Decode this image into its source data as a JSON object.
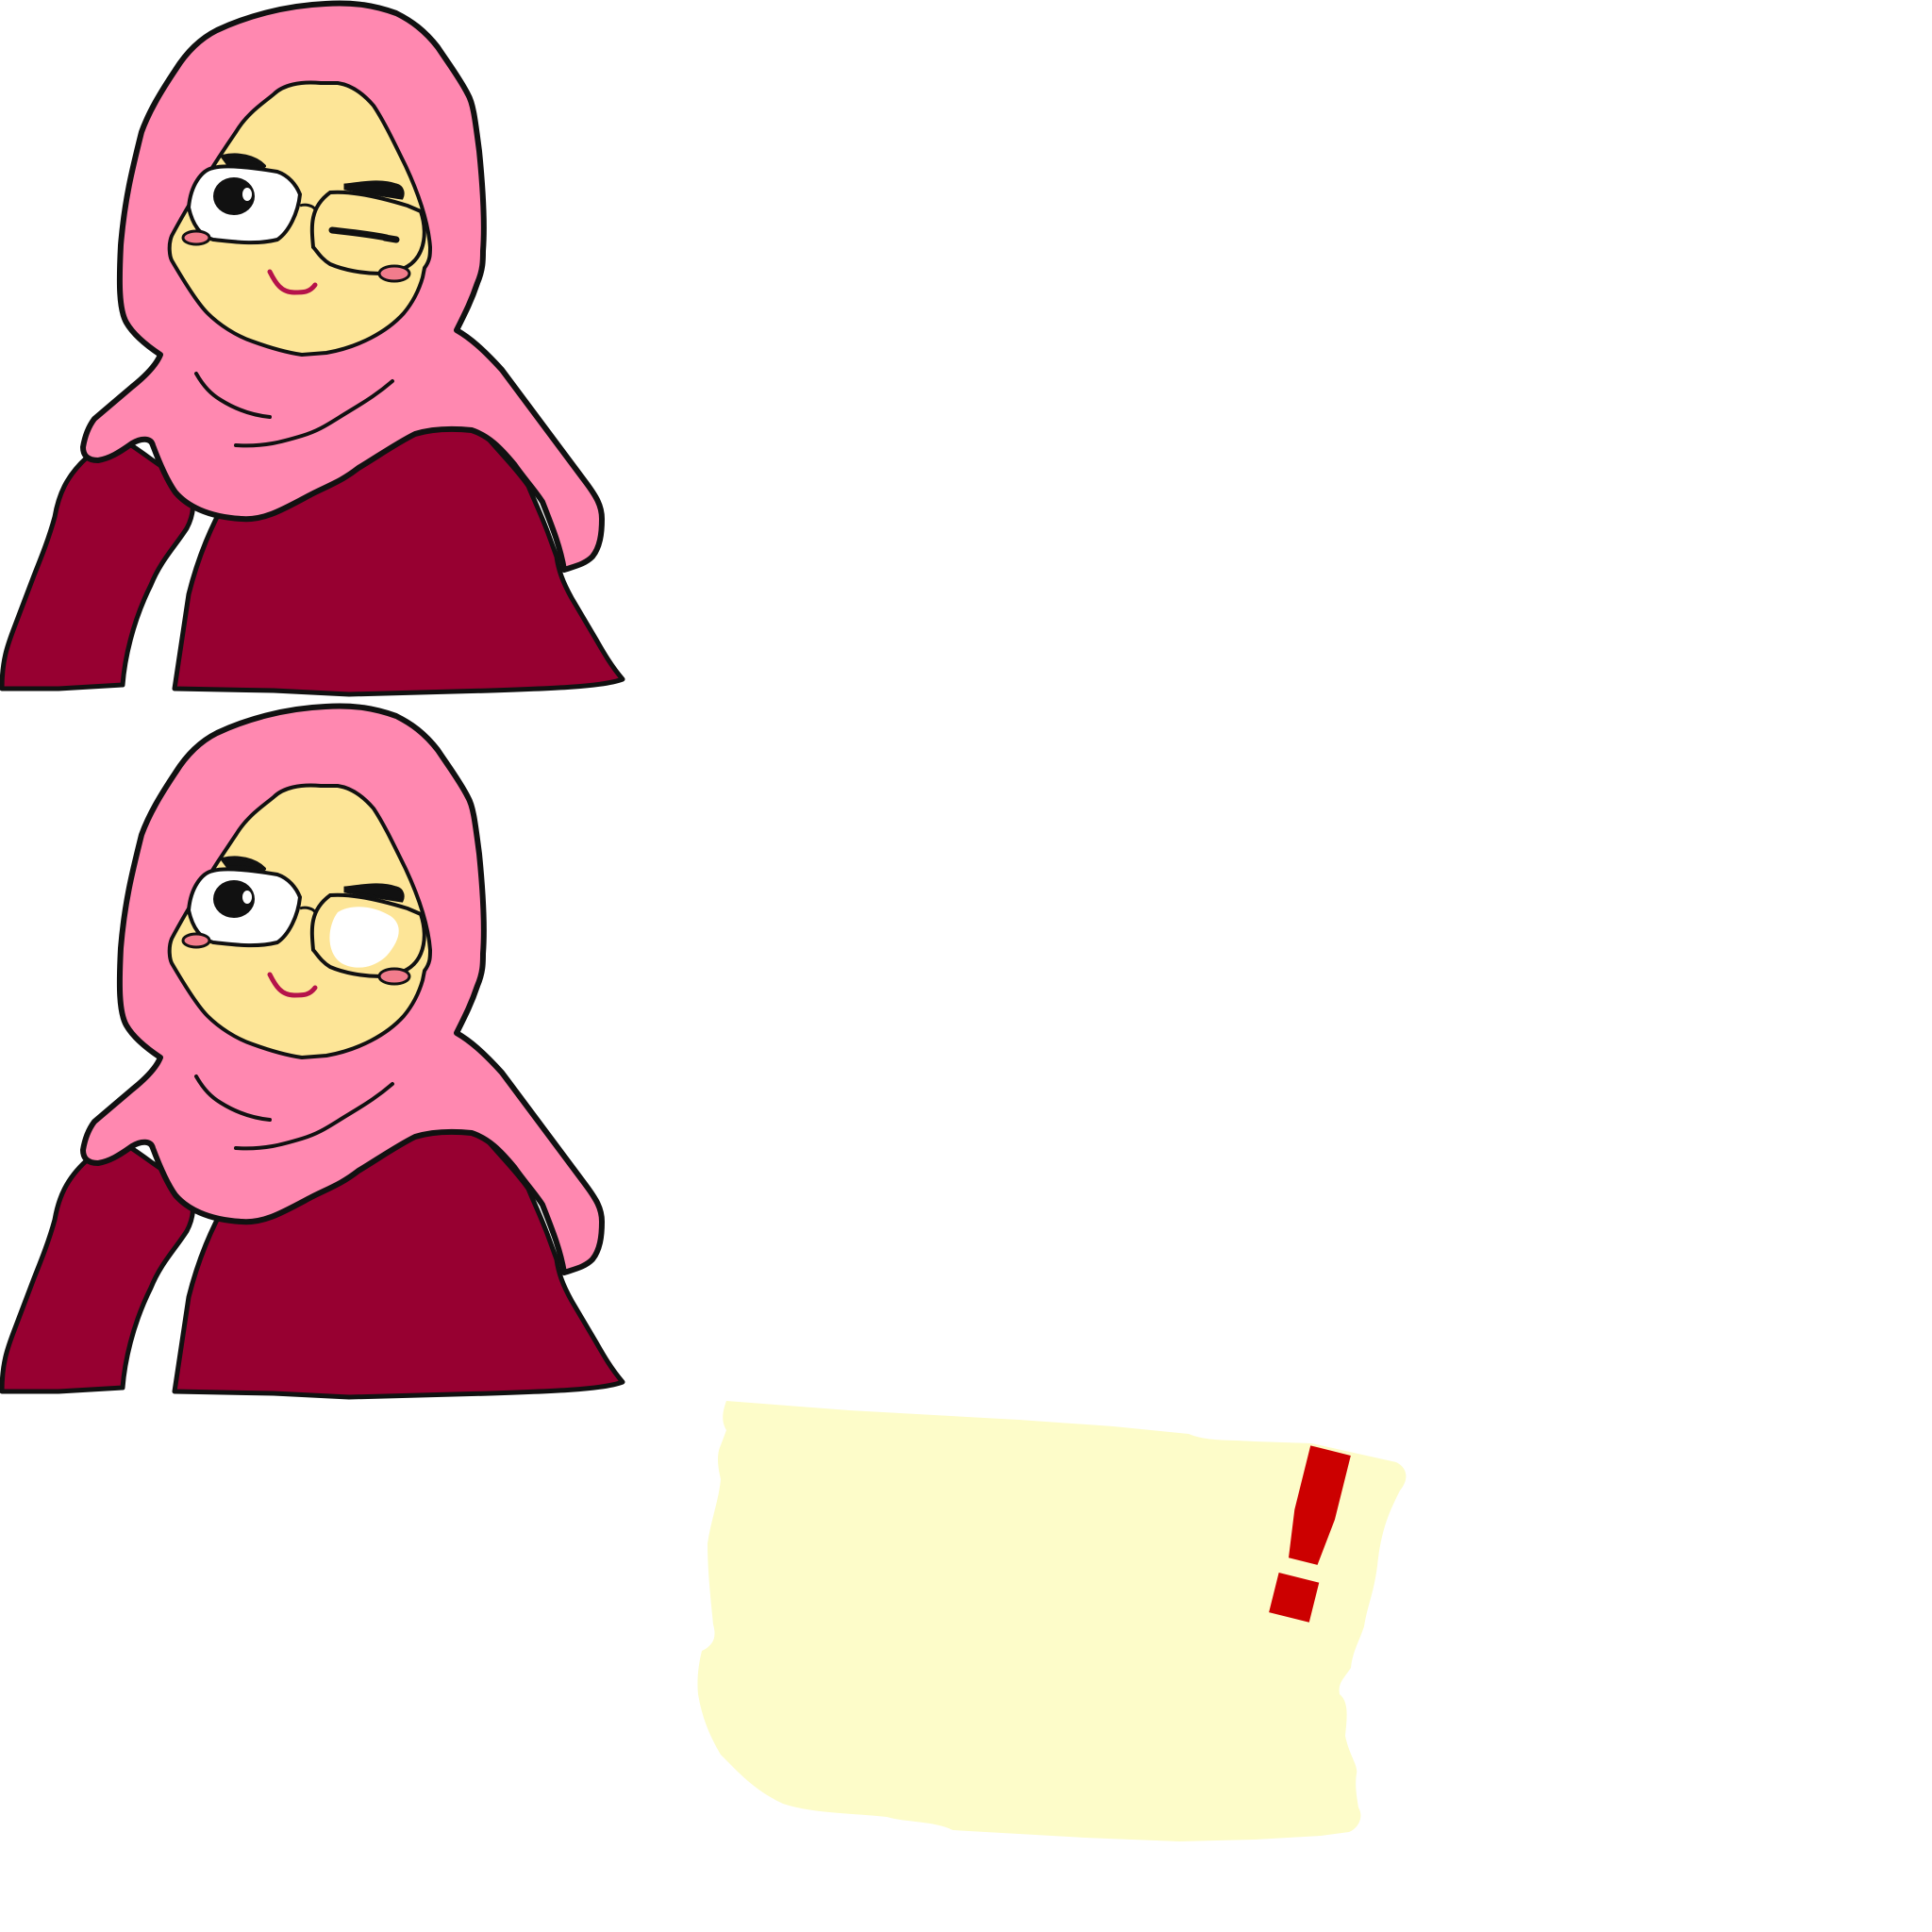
{
  "meme": {
    "panels": [
      {
        "expression": "wink"
      },
      {
        "expression": "eyes-open-surprised"
      }
    ],
    "note": {
      "text": "!"
    }
  },
  "colors": {
    "background": "#ffffff",
    "hijab": "#ff88b0",
    "face": "#fde597",
    "robe": "#970031",
    "outline": "#111111",
    "blush": "#f27c8c",
    "mouth": "#b5134a",
    "note_paper": "#fdfcc9",
    "exclamation": "#cc0000"
  }
}
